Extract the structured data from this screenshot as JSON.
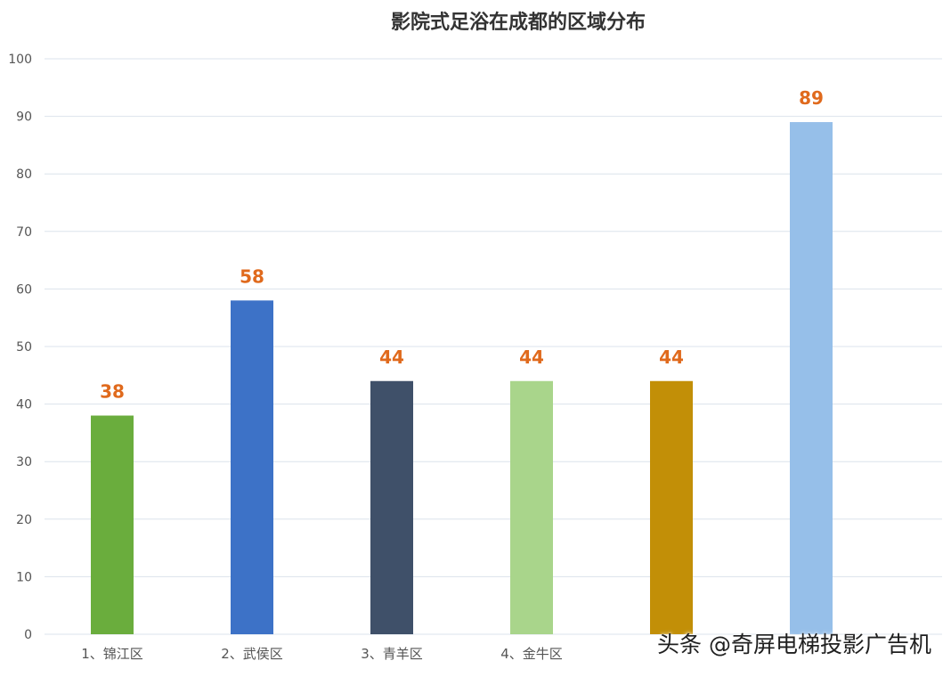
{
  "chart_data": {
    "type": "bar",
    "title": "影院式足浴在成都的区域分布",
    "categories": [
      "1、锦江区",
      "2、武侯区",
      "3、青羊区",
      "4、金牛区",
      "",
      ""
    ],
    "values": [
      38,
      58,
      44,
      44,
      44,
      89
    ],
    "data_labels": [
      "38",
      "58",
      "44",
      "44",
      "44",
      "89"
    ],
    "bar_colors": [
      "#6aad3d",
      "#3d72c7",
      "#3f5069",
      "#a9d58b",
      "#c28f07",
      "#96bfe9"
    ],
    "label_color": "#e06a1d",
    "ylim": [
      0,
      100
    ],
    "yticks": [
      "0",
      "10",
      "20",
      "30",
      "40",
      "50",
      "60",
      "70",
      "80",
      "90",
      "100"
    ],
    "xlabel": "",
    "ylabel": "",
    "grid": true,
    "legend": "none"
  },
  "watermark": "头条 @奇屏电梯投影广告机"
}
